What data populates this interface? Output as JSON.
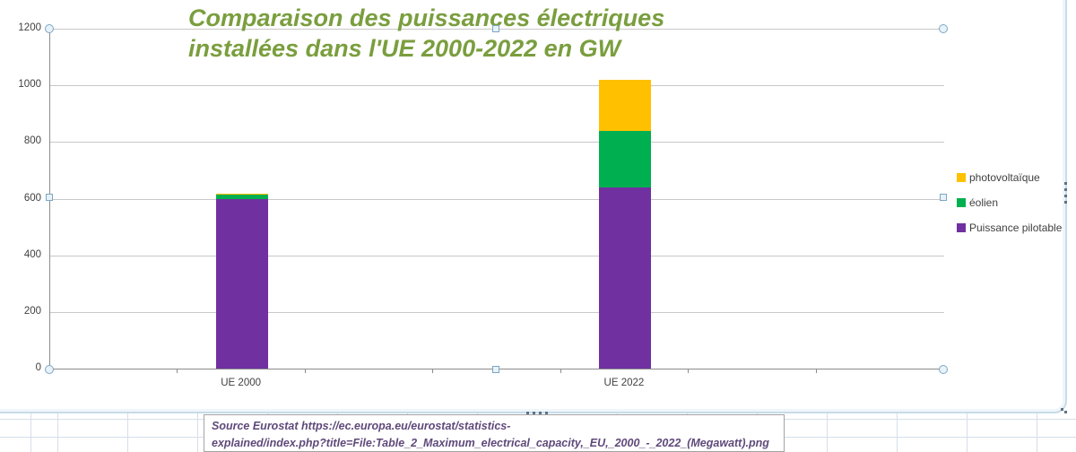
{
  "chart": {
    "title_line1": "Comparaison des puissances électriques",
    "title_line2": "installées dans l'UE 2000-2022 en GW",
    "title_color": "#7A9E3E",
    "source_line1": "Source Eurostat  https://ec.europa.eu/eurostat/statistics-",
    "source_line2": "explained/index.php?title=File:Table_2_Maximum_electrical_capacity,_EU,_2000_-_2022_(Megawatt).png",
    "source_color": "#5F497A"
  },
  "chart_data": {
    "type": "bar",
    "stacked": true,
    "title": "Comparaison des puissances électriques installées dans l'UE 2000-2022 en GW",
    "xlabel": "",
    "ylabel": "GW",
    "categories": [
      "UE 2000",
      "UE 2022"
    ],
    "series": [
      {
        "name": "Puissance pilotable",
        "color": "#7030A0",
        "values": [
          600,
          640
        ]
      },
      {
        "name": "éolien",
        "color": "#00B050",
        "values": [
          17,
          200
        ]
      },
      {
        "name": "photovoltaïque",
        "color": "#FFC000",
        "values": [
          2,
          180
        ]
      }
    ],
    "totals": [
      619,
      1020
    ],
    "ylim": [
      0,
      1200
    ],
    "ytick_interval": 200,
    "yticks": [
      0,
      200,
      400,
      600,
      800,
      1000,
      1200
    ],
    "grid": true,
    "legend_position": "right",
    "legend_order": [
      "photovoltaïque",
      "éolien",
      "Puissance pilotable"
    ],
    "category_slots": 7,
    "category_slot_index": [
      1,
      4
    ]
  }
}
